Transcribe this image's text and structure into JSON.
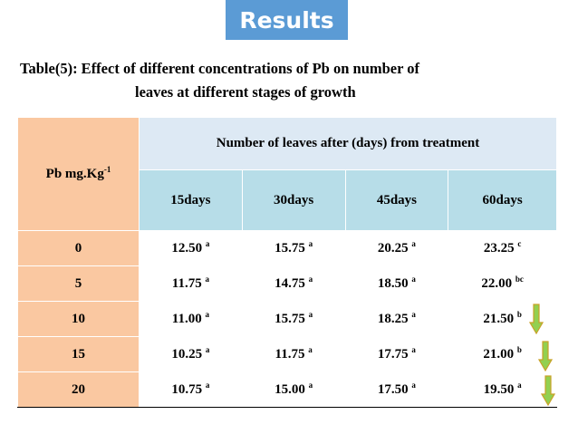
{
  "banner": {
    "title": "Results"
  },
  "caption": {
    "line1": "Table(5): Effect of different concentrations of Pb on number of",
    "line2": "leaves at different stages of growth"
  },
  "table": {
    "corner_label": "Pb mg.Kg",
    "corner_sup": "-1",
    "group_header": "Number of leaves  after (days) from treatment",
    "columns": [
      "15days",
      "30days",
      "45days",
      "60days"
    ],
    "rows": [
      {
        "pb": "0",
        "cells": [
          {
            "v": "12.50",
            "s": "a"
          },
          {
            "v": "15.75",
            "s": "a"
          },
          {
            "v": "20.25",
            "s": "a"
          },
          {
            "v": "23.25",
            "s": "c"
          }
        ]
      },
      {
        "pb": "5",
        "cells": [
          {
            "v": "11.75",
            "s": "a"
          },
          {
            "v": "14.75",
            "s": "a"
          },
          {
            "v": "18.50",
            "s": "a"
          },
          {
            "v": "22.00",
            "s": "bc"
          }
        ]
      },
      {
        "pb": "10",
        "cells": [
          {
            "v": "11.00",
            "s": "a"
          },
          {
            "v": "15.75",
            "s": "a"
          },
          {
            "v": "18.25",
            "s": "a"
          },
          {
            "v": "21.50",
            "s": "b"
          }
        ]
      },
      {
        "pb": "15",
        "cells": [
          {
            "v": "10.25",
            "s": "a"
          },
          {
            "v": "11.75",
            "s": "a"
          },
          {
            "v": "17.75",
            "s": "a"
          },
          {
            "v": "21.00",
            "s": "b"
          }
        ]
      },
      {
        "pb": "20",
        "cells": [
          {
            "v": "10.75",
            "s": "a"
          },
          {
            "v": "15.00",
            "s": "a"
          },
          {
            "v": "17.50",
            "s": "a"
          },
          {
            "v": "19.50",
            "s": "a"
          }
        ]
      }
    ]
  },
  "colors": {
    "banner": "#5b9bd5",
    "row_label_bg": "#fac8a1",
    "header_bg": "#dde9f4",
    "day_header_bg": "#b7dde8",
    "arrow_fill": "#92d050",
    "arrow_stroke": "#c9a227"
  },
  "icons": [
    "down-arrow-icon"
  ]
}
